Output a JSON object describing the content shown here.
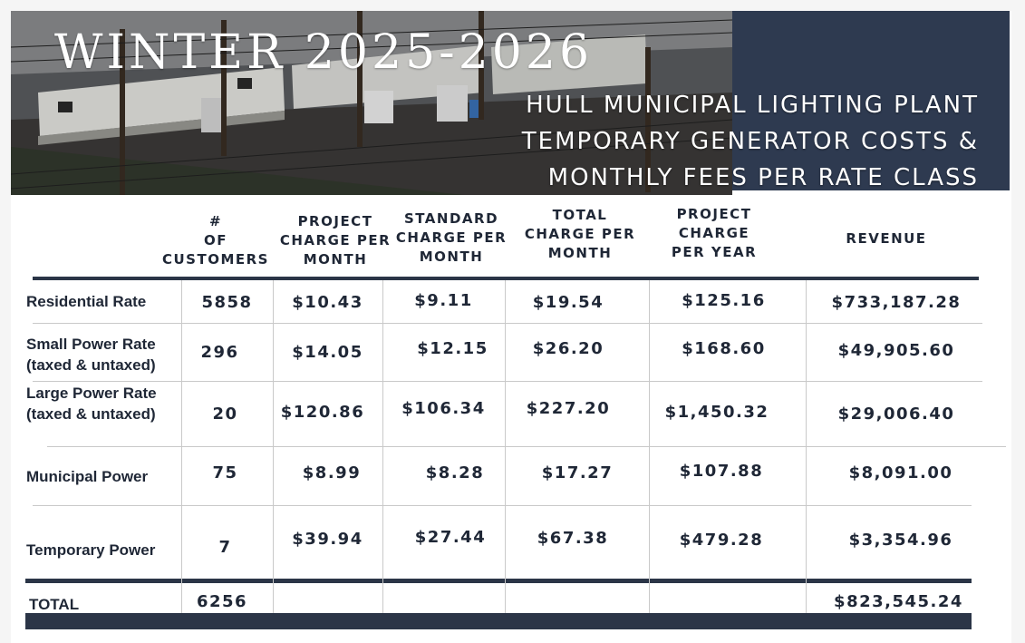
{
  "header": {
    "title": "WINTER 2025-2026",
    "subtitle_lines": [
      "HULL MUNICIPAL LIGHTING PLANT",
      "TEMPORARY GENERATOR COSTS  &",
      "MONTHLY FEES PER RATE CLASS"
    ],
    "navy_color": "#2e3a50"
  },
  "table": {
    "columns": [
      "#\nOF\nCUSTOMERS",
      "PROJECT\nCHARGE PER\nMONTH",
      "STANDARD\nCHARGE PER\nMONTH",
      "TOTAL\nCHARGE PER\nMONTH",
      "PROJECT\nCHARGE\nPER YEAR",
      "REVENUE"
    ],
    "rows": [
      {
        "label": "Residential Rate",
        "customers": "5858",
        "project_month": "$10.43",
        "standard_month": "$9.11",
        "total_month": "$19.54",
        "project_year": "$125.16",
        "revenue": "$733,187.28"
      },
      {
        "label": "Small Power Rate\n(taxed & untaxed)",
        "customers": "296",
        "project_month": "$14.05",
        "standard_month": "$12.15",
        "total_month": "$26.20",
        "project_year": "$168.60",
        "revenue": "$49,905.60"
      },
      {
        "label": "Large Power Rate\n(taxed & untaxed)",
        "customers": "20",
        "project_month": "$120.86",
        "standard_month": "$106.34",
        "total_month": "$227.20",
        "project_year": "$1,450.32",
        "revenue": "$29,006.40"
      },
      {
        "label": "Municipal Power",
        "customers": "75",
        "project_month": "$8.99",
        "standard_month": "$8.28",
        "total_month": "$17.27",
        "project_year": "$107.88",
        "revenue": "$8,091.00"
      },
      {
        "label": "Temporary Power",
        "customers": "7",
        "project_month": "$39.94",
        "standard_month": "$27.44",
        "total_month": "$67.38",
        "project_year": "$479.28",
        "revenue": "$3,354.96"
      }
    ],
    "total": {
      "label": "TOTAL",
      "customers": "6256",
      "revenue": "$823,545.24"
    }
  }
}
